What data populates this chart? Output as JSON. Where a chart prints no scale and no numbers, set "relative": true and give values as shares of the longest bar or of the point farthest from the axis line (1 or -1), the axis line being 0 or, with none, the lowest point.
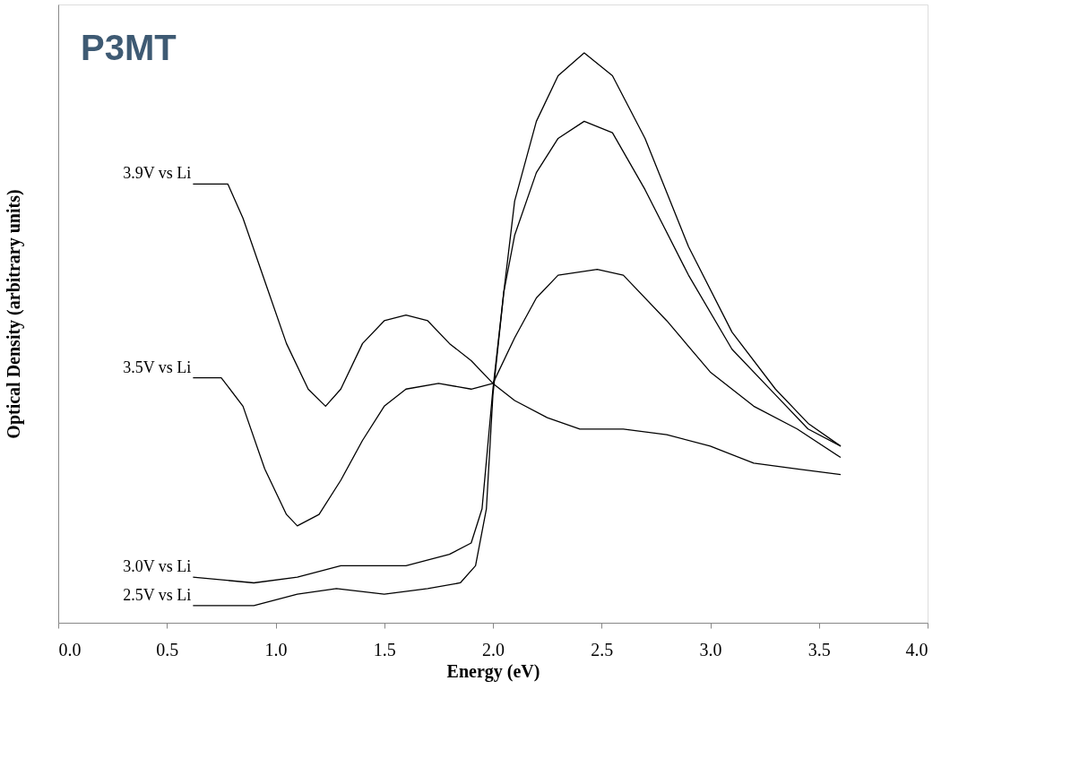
{
  "chart_data": {
    "type": "line",
    "title": "P3MT",
    "xlabel": "Energy (eV)",
    "ylabel": "Optical Density (arbitrary units)",
    "relative": true,
    "xlim": [
      0,
      4
    ],
    "xticks": [
      {
        "value": 0,
        "label": "0.0"
      },
      {
        "value": 0.5,
        "label": "0.5"
      },
      {
        "value": 1,
        "label": "1.0"
      },
      {
        "value": 1.5,
        "label": "1.5"
      },
      {
        "value": 2,
        "label": "2.0"
      },
      {
        "value": 2.5,
        "label": "2.5"
      },
      {
        "value": 3,
        "label": "3.0"
      },
      {
        "value": 3.5,
        "label": "3.5"
      },
      {
        "value": 4,
        "label": "4.0"
      }
    ],
    "legend": false,
    "grid": false,
    "marker": "none",
    "line_style": "solid",
    "series": [
      {
        "name": "3.9V vs Li",
        "color": "#000000",
        "x": [
          0.62,
          0.7,
          0.78,
          0.85,
          0.95,
          1.05,
          1.15,
          1.23,
          1.3,
          1.4,
          1.5,
          1.6,
          1.7,
          1.8,
          1.9,
          2.0,
          2.1,
          2.25,
          2.4,
          2.6,
          2.8,
          3.0,
          3.2,
          3.4,
          3.6
        ],
        "values": [
          0.77,
          0.77,
          0.77,
          0.71,
          0.6,
          0.49,
          0.41,
          0.38,
          0.41,
          0.49,
          0.53,
          0.54,
          0.53,
          0.49,
          0.46,
          0.42,
          0.39,
          0.36,
          0.34,
          0.34,
          0.33,
          0.31,
          0.28,
          0.27,
          0.26
        ]
      },
      {
        "name": "3.5V vs Li",
        "color": "#000000",
        "x": [
          0.62,
          0.75,
          0.85,
          0.95,
          1.05,
          1.1,
          1.2,
          1.3,
          1.4,
          1.5,
          1.6,
          1.75,
          1.9,
          2.0,
          2.1,
          2.2,
          2.3,
          2.48,
          2.6,
          2.8,
          3.0,
          3.2,
          3.4,
          3.6
        ],
        "values": [
          0.43,
          0.43,
          0.38,
          0.27,
          0.19,
          0.17,
          0.19,
          0.25,
          0.32,
          0.38,
          0.41,
          0.42,
          0.41,
          0.42,
          0.5,
          0.57,
          0.61,
          0.62,
          0.61,
          0.53,
          0.44,
          0.38,
          0.34,
          0.29
        ]
      },
      {
        "name": "3.0V vs Li",
        "color": "#000000",
        "x": [
          0.62,
          0.9,
          1.1,
          1.3,
          1.6,
          1.8,
          1.9,
          1.95,
          2.0,
          2.05,
          2.1,
          2.2,
          2.3,
          2.42,
          2.55,
          2.7,
          2.9,
          3.1,
          3.3,
          3.45,
          3.6
        ],
        "values": [
          0.08,
          0.07,
          0.08,
          0.1,
          0.1,
          0.12,
          0.14,
          0.2,
          0.41,
          0.58,
          0.68,
          0.79,
          0.85,
          0.88,
          0.86,
          0.76,
          0.61,
          0.48,
          0.4,
          0.34,
          0.31
        ]
      },
      {
        "name": "2.5V vs Li",
        "color": "#000000",
        "x": [
          0.62,
          0.9,
          1.1,
          1.28,
          1.5,
          1.7,
          1.85,
          1.92,
          1.97,
          2.0,
          2.05,
          2.1,
          2.2,
          2.3,
          2.42,
          2.55,
          2.7,
          2.9,
          3.1,
          3.3,
          3.45,
          3.6
        ],
        "values": [
          0.03,
          0.03,
          0.05,
          0.06,
          0.05,
          0.06,
          0.07,
          0.1,
          0.2,
          0.4,
          0.58,
          0.74,
          0.88,
          0.96,
          1.0,
          0.96,
          0.85,
          0.66,
          0.51,
          0.41,
          0.35,
          0.31
        ]
      }
    ]
  }
}
